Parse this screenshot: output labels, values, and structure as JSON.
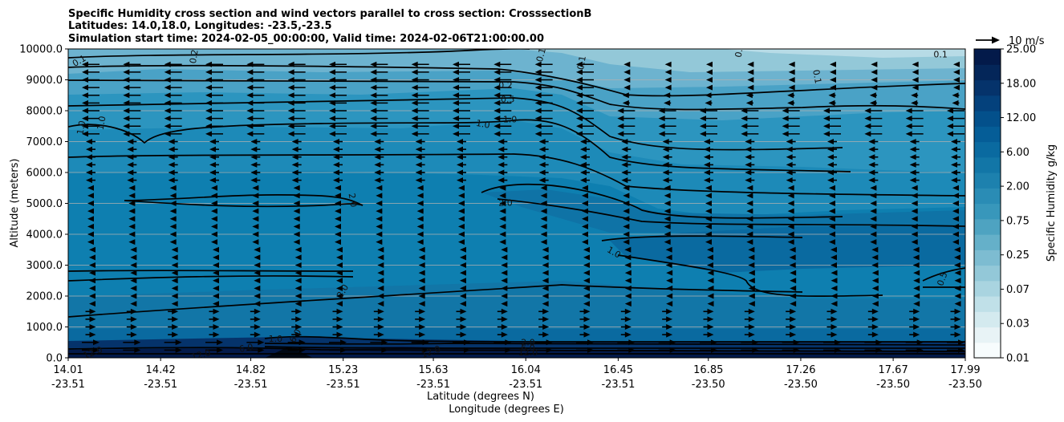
{
  "chart_data": {
    "type": "heatmap",
    "title_lines": [
      "Specific Humidity cross section and wind vectors parallel to cross section: CrosssectionB",
      "Latitudes: 14.0,18.0, Longitudes: -23.5,-23.5",
      "Simulation start time: 2024-02-05_00:00:00, Valid time: 2024-02-06T21:00:00.00"
    ],
    "ylabel": "Altitude (meters)",
    "xlabel_line1": "Latitude (degrees N)",
    "xlabel_line2": "Longitude (degrees E)",
    "ylim": [
      0,
      10000
    ],
    "y_ticks": [
      "0.0",
      "1000.0",
      "2000.0",
      "3000.0",
      "4000.0",
      "5000.0",
      "6000.0",
      "7000.0",
      "8000.0",
      "9000.0",
      "10000.0"
    ],
    "y_tick_values": [
      0,
      1000,
      2000,
      3000,
      4000,
      5000,
      6000,
      7000,
      8000,
      9000,
      10000
    ],
    "x_range": [
      14.01,
      17.99
    ],
    "x_ticks": [
      {
        "lat": "14.01",
        "lon": "-23.51",
        "value": 14.01
      },
      {
        "lat": "14.42",
        "lon": "-23.51",
        "value": 14.42
      },
      {
        "lat": "14.82",
        "lon": "-23.51",
        "value": 14.82
      },
      {
        "lat": "15.23",
        "lon": "-23.51",
        "value": 15.23
      },
      {
        "lat": "15.63",
        "lon": "-23.51",
        "value": 15.63
      },
      {
        "lat": "16.04",
        "lon": "-23.51",
        "value": 16.04
      },
      {
        "lat": "16.45",
        "lon": "-23.51",
        "value": 16.45
      },
      {
        "lat": "16.85",
        "lon": "-23.50",
        "value": 16.85
      },
      {
        "lat": "17.26",
        "lon": "-23.50",
        "value": 17.26
      },
      {
        "lat": "17.67",
        "lon": "-23.50",
        "value": 17.67
      },
      {
        "lat": "17.99",
        "lon": "-23.50",
        "value": 17.99
      }
    ],
    "colorbar": {
      "label": "Specific Humidity g/kg",
      "tick_labels": [
        "0.01",
        "0.03",
        "0.07",
        "0.25",
        "0.75",
        "2.00",
        "6.00",
        "12.00",
        "18.00",
        "25.00"
      ],
      "levels": 20,
      "colors": [
        "#f7fcfd",
        "#e8f3f6",
        "#d4eaef",
        "#c0e0e8",
        "#a9d4e0",
        "#93c8d8",
        "#7dbcd1",
        "#65b0c9",
        "#4ea3c1",
        "#3897bb",
        "#2a8cb5",
        "#1d81ae",
        "#1276a7",
        "#0a6aa0",
        "#055d97",
        "#03508b",
        "#04417c",
        "#05336b",
        "#042659",
        "#031a4a"
      ]
    },
    "wind_reference": {
      "label": "10 m/s",
      "speed": 10
    },
    "contour_labels": [
      {
        "text": "0.1",
        "x": 14.06,
        "y": 9600,
        "angle": -30
      },
      {
        "text": "0.2",
        "x": 14.57,
        "y": 9750,
        "angle": -80
      },
      {
        "text": "0.1",
        "x": 16.11,
        "y": 9800,
        "angle": -75
      },
      {
        "text": "0.1",
        "x": 16.29,
        "y": 9550,
        "angle": -80
      },
      {
        "text": "0.1",
        "x": 16.99,
        "y": 9950,
        "angle": -80
      },
      {
        "text": "0.1",
        "x": 17.33,
        "y": 9100,
        "angle": 80
      },
      {
        "text": "0.1",
        "x": 17.88,
        "y": 9800,
        "angle": 0
      },
      {
        "text": "0.2",
        "x": 15.95,
        "y": 8800,
        "angle": 0
      },
      {
        "text": "0.5",
        "x": 15.96,
        "y": 8350,
        "angle": 0
      },
      {
        "text": "1.0",
        "x": 14.07,
        "y": 7450,
        "angle": -80
      },
      {
        "text": "1.0",
        "x": 14.16,
        "y": 7600,
        "angle": -80
      },
      {
        "text": "1.0",
        "x": 15.85,
        "y": 7550,
        "angle": 10
      },
      {
        "text": "1.0",
        "x": 15.97,
        "y": 7700,
        "angle": 0
      },
      {
        "text": "2.0",
        "x": 15.27,
        "y": 5100,
        "angle": 80
      },
      {
        "text": "2.0",
        "x": 15.95,
        "y": 5000,
        "angle": 0
      },
      {
        "text": "1.0",
        "x": 16.43,
        "y": 3400,
        "angle": 30
      },
      {
        "text": "0.5",
        "x": 17.89,
        "y": 2550,
        "angle": -70
      },
      {
        "text": "2.0",
        "x": 15.23,
        "y": 2150,
        "angle": -60
      },
      {
        "text": "1.0",
        "x": 14.93,
        "y": 600,
        "angle": 0
      },
      {
        "text": "6.0",
        "x": 15.02,
        "y": 700,
        "angle": -60
      },
      {
        "text": "12.0",
        "x": 14.12,
        "y": 150,
        "angle": -20
      },
      {
        "text": "6.0",
        "x": 14.8,
        "y": 300,
        "angle": -10
      },
      {
        "text": "12.0",
        "x": 14.6,
        "y": 80,
        "angle": -15
      },
      {
        "text": "12.0",
        "x": 15.62,
        "y": 180,
        "angle": -20
      },
      {
        "text": "2.0",
        "x": 16.05,
        "y": 480,
        "angle": 0
      },
      {
        "text": "6.0",
        "x": 16.05,
        "y": 300,
        "angle": 0
      },
      {
        "text": "12.0",
        "x": 16.05,
        "y": 150,
        "angle": 0
      }
    ]
  }
}
